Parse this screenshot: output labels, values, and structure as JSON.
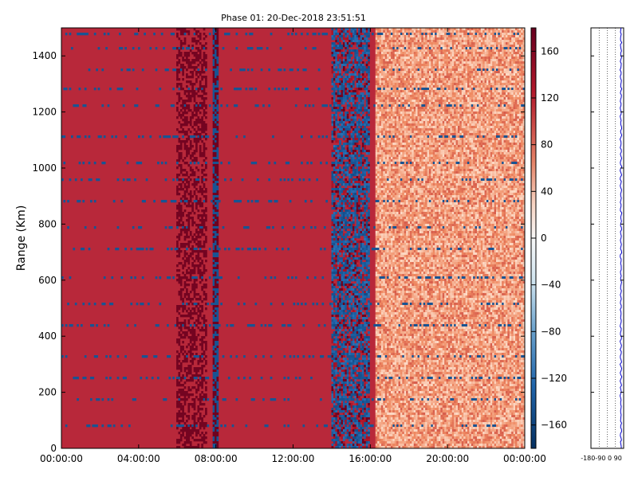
{
  "chart_data": [
    {
      "type": "heatmap",
      "title": "Phase 01: 20-Dec-2018 23:51:51",
      "ylabel": "Range (Km)",
      "xlabel": "",
      "xlim": [
        "00:00:00",
        "24:00:00"
      ],
      "ylim": [
        0,
        1500
      ],
      "x_ticks": [
        "00:00:00",
        "04:00:00",
        "08:00:00",
        "12:00:00",
        "16:00:00",
        "20:00:00",
        "00:00:00"
      ],
      "y_ticks": [
        0,
        200,
        400,
        600,
        800,
        1000,
        1200,
        1400
      ],
      "colormap": "RdBu_r",
      "colors": {
        "high": "#67001f",
        "mid_high": "#b2182b",
        "neutral": "#f7f7f7",
        "mid_low": "#2166ac",
        "low": "#053061"
      },
      "colorbar": {
        "vmin": -180,
        "vmax": 180,
        "ticks": [
          160,
          120,
          80,
          40,
          0,
          -40,
          -80,
          -120,
          -160
        ]
      },
      "dominant_value": 150,
      "features": [
        {
          "name": "disturbed-band",
          "x_range_hours": [
            14.0,
            16.0
          ],
          "description_value": -150
        },
        {
          "name": "lighter-region",
          "x_range_hours": [
            16.3,
            24.0
          ],
          "approx_value": 60
        },
        {
          "name": "dark-strip",
          "x_range_hours": [
            6.0,
            7.5
          ],
          "approx_value": 175
        },
        {
          "name": "vertical-line",
          "x_hours": 8.0
        }
      ]
    },
    {
      "type": "line",
      "title": "",
      "x_ticks": [
        -180,
        -90,
        0,
        90
      ],
      "x_tick_text": "-180-90 0 90",
      "xlim": [
        -180,
        180
      ],
      "ylim": [
        0,
        1500
      ],
      "series": [
        {
          "color": "#0000cc",
          "approx_value": 150
        }
      ]
    }
  ]
}
